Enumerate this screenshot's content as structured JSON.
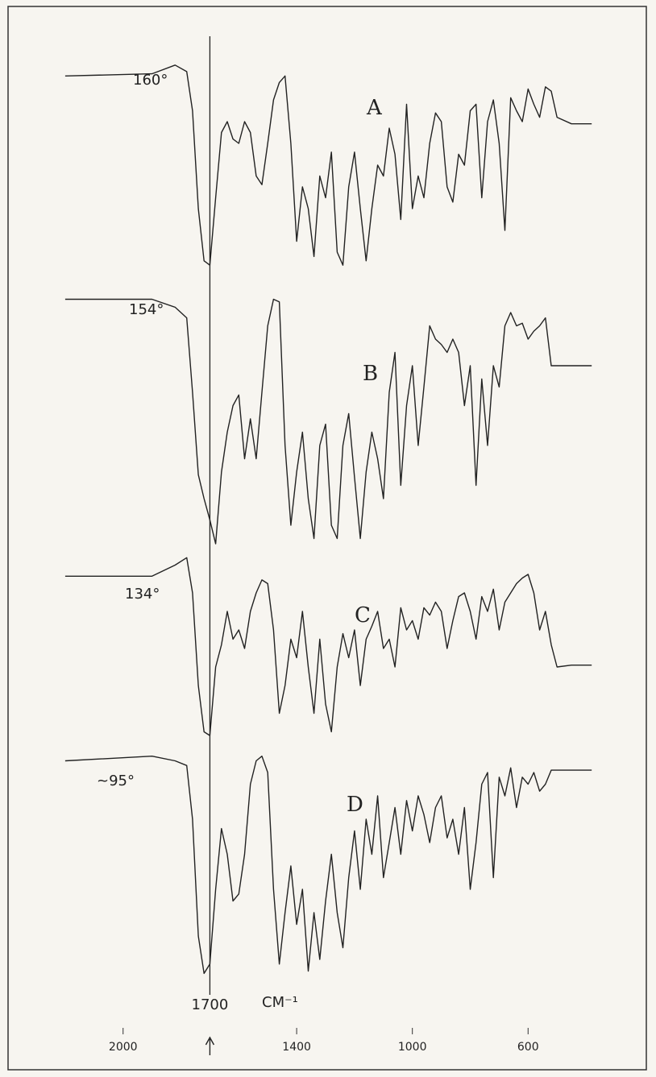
{
  "chart_data": {
    "type": "line",
    "xlabel": "CM⁻¹",
    "xlim": [
      2250,
      350
    ],
    "ylim": [
      0,
      100
    ],
    "xticks": [
      2000,
      1400,
      1000,
      600
    ],
    "annotations": [
      {
        "text": "1700",
        "x": 1700
      }
    ],
    "x": [
      2200,
      1900,
      1820,
      1780,
      1760,
      1740,
      1720,
      1700,
      1680,
      1660,
      1640,
      1620,
      1600,
      1580,
      1560,
      1540,
      1520,
      1500,
      1480,
      1460,
      1440,
      1420,
      1400,
      1380,
      1360,
      1340,
      1320,
      1300,
      1280,
      1260,
      1240,
      1220,
      1200,
      1180,
      1160,
      1140,
      1120,
      1100,
      1080,
      1060,
      1040,
      1020,
      1000,
      980,
      960,
      940,
      920,
      900,
      880,
      860,
      840,
      820,
      800,
      780,
      760,
      740,
      720,
      700,
      680,
      660,
      640,
      620,
      600,
      580,
      560,
      540,
      520,
      500,
      450,
      380
    ],
    "series": [
      {
        "name": "A",
        "label": "160°",
        "color": "#222222",
        "values": [
          91,
          92,
          96,
          93,
          75,
          30,
          6,
          4,
          35,
          65,
          70,
          62,
          60,
          70,
          65,
          45,
          41,
          60,
          80,
          88,
          91,
          60,
          15,
          40,
          30,
          8,
          45,
          35,
          56,
          10,
          4,
          40,
          56,
          30,
          6,
          30,
          50,
          45,
          67,
          55,
          25,
          78,
          30,
          45,
          35,
          60,
          74,
          70,
          40,
          33,
          55,
          50,
          75,
          78,
          35,
          70,
          80,
          60,
          20,
          81,
          75,
          70,
          85,
          78,
          72,
          86,
          84,
          72,
          69,
          69
        ]
      },
      {
        "name": "B",
        "label": "154°",
        "color": "#222222",
        "values": [
          95,
          95,
          92,
          88,
          60,
          29,
          20,
          12,
          3,
          30,
          45,
          55,
          59,
          35,
          50,
          35,
          60,
          85,
          95,
          94,
          40,
          10,
          30,
          45,
          20,
          5,
          40,
          48,
          10,
          5,
          40,
          52,
          28,
          5,
          30,
          45,
          35,
          20,
          60,
          75,
          25,
          55,
          70,
          40,
          62,
          85,
          80,
          78,
          75,
          80,
          75,
          55,
          70,
          25,
          65,
          40,
          70,
          62,
          85,
          90,
          85,
          86,
          80,
          83,
          85,
          88,
          70,
          70,
          70,
          70
        ]
      },
      {
        "name": "C",
        "label": "134°",
        "color": "#222222",
        "values": [
          89,
          89,
          95,
          99,
          80,
          30,
          5,
          3,
          40,
          52,
          70,
          55,
          60,
          50,
          70,
          80,
          87,
          85,
          60,
          15,
          30,
          55,
          45,
          70,
          40,
          15,
          55,
          20,
          5,
          40,
          58,
          45,
          60,
          30,
          55,
          62,
          70,
          50,
          55,
          40,
          72,
          60,
          65,
          55,
          72,
          68,
          75,
          70,
          50,
          65,
          78,
          80,
          70,
          55,
          78,
          70,
          82,
          60,
          75,
          80,
          85,
          88,
          90,
          80,
          60,
          70,
          52,
          40,
          41,
          41
        ]
      },
      {
        "name": "D",
        "label": "~95°",
        "color": "#222222",
        "values": [
          95,
          97,
          95,
          93,
          70,
          20,
          4,
          8,
          40,
          66,
          55,
          35,
          38,
          55,
          85,
          95,
          97,
          90,
          40,
          8,
          30,
          50,
          25,
          40,
          5,
          30,
          10,
          35,
          55,
          30,
          15,
          45,
          65,
          40,
          70,
          55,
          80,
          45,
          60,
          75,
          55,
          78,
          65,
          80,
          72,
          60,
          75,
          80,
          62,
          70,
          55,
          75,
          40,
          60,
          85,
          90,
          45,
          88,
          80,
          92,
          75,
          88,
          85,
          90,
          82,
          85,
          91,
          91,
          91,
          91
        ]
      }
    ]
  }
}
